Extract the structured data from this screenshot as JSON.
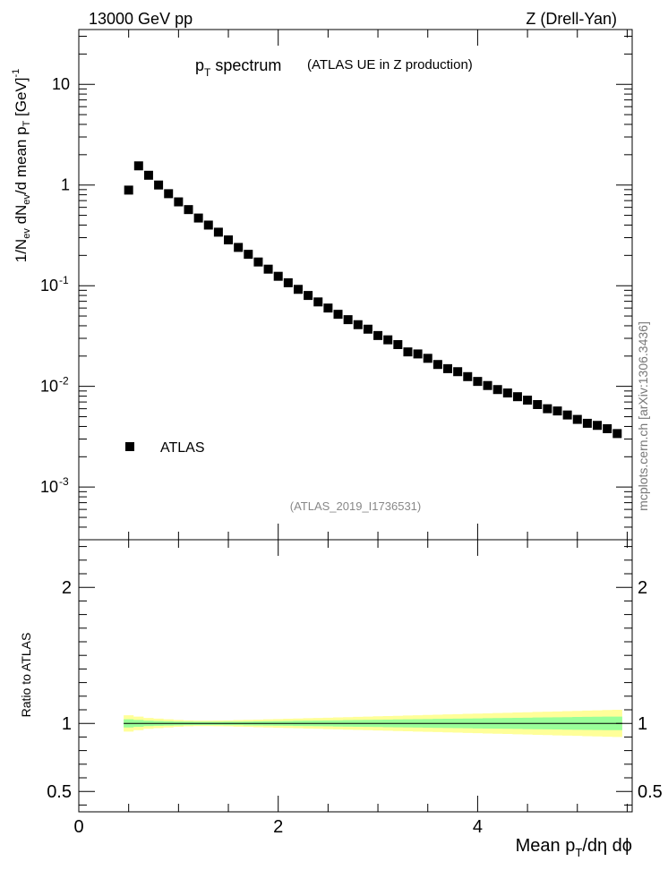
{
  "header": {
    "left": "13000 GeV pp",
    "right": "Z (Drell-Yan)"
  },
  "plot_title": {
    "main_p": "p",
    "main_sub": "T",
    "main_rest": " spectrum",
    "paren": "(ATLAS UE in Z production)"
  },
  "watermark": "(ATLAS_2019_I1736531)",
  "side_label": "mcplots.cern.ch [arXiv:1306.3436]",
  "legend": {
    "label": "ATLAS"
  },
  "upper_ylabel": {
    "a": "1/N",
    "a_sub": "ev",
    "b": " dN",
    "b_sub": "ev",
    "c": "/d mean p",
    "c_sub": "T",
    "d": " [GeV]",
    "d_sup": "-1"
  },
  "upper_yticks": [
    {
      "base": "10",
      "exp": "-3",
      "v": 0.001
    },
    {
      "base": "10",
      "exp": "-2",
      "v": 0.01
    },
    {
      "base": "10",
      "exp": "-1",
      "v": 0.1
    },
    {
      "base": "1",
      "exp": "",
      "v": 1
    },
    {
      "base": "10",
      "exp": "",
      "v": 10
    }
  ],
  "lower_ylabel": "Ratio to ATLAS",
  "lower_yticks": [
    {
      "label": "0.5",
      "v": 0.5
    },
    {
      "label": "1",
      "v": 1
    },
    {
      "label": "2",
      "v": 2
    }
  ],
  "xlabel": {
    "a": "Mean p",
    "a_sub": "T",
    "b": "/dη dϕ"
  },
  "xticks": [
    {
      "label": "0",
      "v": 0
    },
    {
      "label": "2",
      "v": 2
    },
    {
      "label": "4",
      "v": 4
    }
  ],
  "chart_data": {
    "type": "scatter",
    "x": [
      0.5,
      0.6,
      0.7,
      0.8,
      0.9,
      1.0,
      1.1,
      1.2,
      1.3,
      1.4,
      1.5,
      1.6,
      1.7,
      1.8,
      1.9,
      2.0,
      2.1,
      2.2,
      2.3,
      2.4,
      2.5,
      2.6,
      2.7,
      2.8,
      2.9,
      3.0,
      3.1,
      3.2,
      3.3,
      3.4,
      3.5,
      3.6,
      3.7,
      3.8,
      3.9,
      4.0,
      4.1,
      4.2,
      4.3,
      4.4,
      4.5,
      4.6,
      4.7,
      4.8,
      4.9,
      5.0,
      5.1,
      5.2,
      5.3,
      5.4
    ],
    "series": [
      {
        "name": "ATLAS",
        "values": [
          0.89,
          1.55,
          1.25,
          1.0,
          0.82,
          0.68,
          0.57,
          0.47,
          0.4,
          0.34,
          0.285,
          0.24,
          0.205,
          0.172,
          0.146,
          0.124,
          0.107,
          0.092,
          0.08,
          0.069,
          0.06,
          0.052,
          0.046,
          0.041,
          0.037,
          0.032,
          0.029,
          0.026,
          0.022,
          0.021,
          0.019,
          0.0165,
          0.015,
          0.014,
          0.0125,
          0.0112,
          0.0102,
          0.0093,
          0.0086,
          0.0079,
          0.0073,
          0.0066,
          0.006,
          0.0057,
          0.0052,
          0.0047,
          0.0043,
          0.0041,
          0.0038,
          0.0034
        ]
      }
    ],
    "ratio_band_inner": [
      0.03,
      0.025,
      0.02,
      0.018,
      0.016,
      0.014,
      0.013,
      0.012,
      0.012,
      0.012,
      0.013,
      0.013,
      0.014,
      0.015,
      0.016,
      0.017,
      0.018,
      0.019,
      0.02,
      0.021,
      0.022,
      0.023,
      0.024,
      0.025,
      0.026,
      0.027,
      0.028,
      0.029,
      0.03,
      0.031,
      0.032,
      0.033,
      0.034,
      0.035,
      0.036,
      0.037,
      0.038,
      0.039,
      0.04,
      0.041,
      0.042,
      0.043,
      0.044,
      0.045,
      0.046,
      0.047,
      0.048,
      0.049,
      0.05,
      0.05
    ],
    "ratio_band_outer": [
      0.06,
      0.05,
      0.04,
      0.035,
      0.03,
      0.025,
      0.022,
      0.02,
      0.02,
      0.021,
      0.022,
      0.024,
      0.026,
      0.028,
      0.03,
      0.032,
      0.034,
      0.036,
      0.038,
      0.04,
      0.042,
      0.044,
      0.046,
      0.048,
      0.05,
      0.052,
      0.054,
      0.056,
      0.058,
      0.06,
      0.062,
      0.064,
      0.066,
      0.068,
      0.07,
      0.072,
      0.074,
      0.076,
      0.078,
      0.08,
      0.082,
      0.084,
      0.086,
      0.088,
      0.09,
      0.092,
      0.094,
      0.096,
      0.098,
      0.1
    ],
    "xlim": [
      0,
      5.55
    ],
    "ylim_upper": [
      0.0003,
      35
    ],
    "ylim_lower": [
      0.35,
      2.35
    ],
    "yscale_upper": "log",
    "legend_position": "lower-left"
  }
}
